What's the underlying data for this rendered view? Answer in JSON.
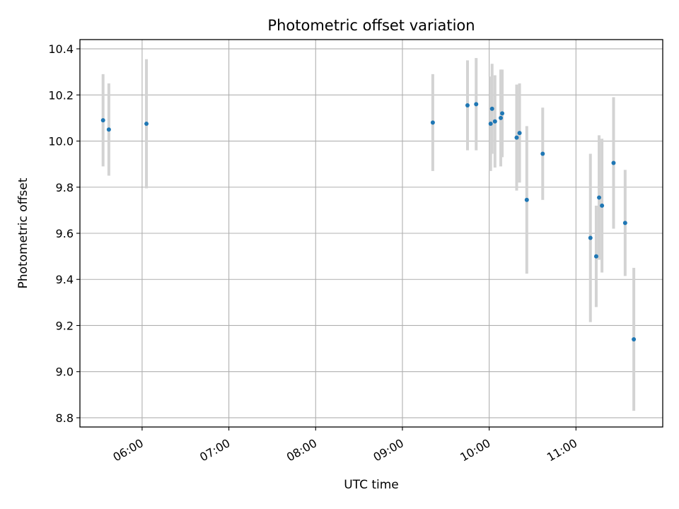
{
  "chart_data": {
    "type": "scatter",
    "title": "Photometric offset variation",
    "xlabel": "UTC time",
    "ylabel": "Photometric offset",
    "xlim": [
      "05:17",
      "12:00"
    ],
    "ylim": [
      8.76,
      10.44
    ],
    "x_ticks": [
      "06:00",
      "07:00",
      "08:00",
      "09:00",
      "10:00",
      "11:00"
    ],
    "y_ticks": [
      "8.8",
      "9.0",
      "9.2",
      "9.4",
      "9.6",
      "9.8",
      "10.0",
      "10.2",
      "10.4"
    ],
    "grid": true,
    "series": [
      {
        "marker_color": "#1f77b4",
        "errorbar_color": "#d3d3d3",
        "points": [
          {
            "x": "05:33",
            "y": 10.09,
            "yerr": 0.2
          },
          {
            "x": "05:37",
            "y": 10.05,
            "yerr": 0.2
          },
          {
            "x": "06:03",
            "y": 10.075,
            "yerr": 0.28
          },
          {
            "x": "09:21",
            "y": 10.08,
            "yerr": 0.21
          },
          {
            "x": "09:45",
            "y": 10.155,
            "yerr": 0.195
          },
          {
            "x": "09:51",
            "y": 10.16,
            "yerr": 0.2
          },
          {
            "x": "10:01",
            "y": 10.075,
            "yerr": 0.205
          },
          {
            "x": "10:02",
            "y": 10.14,
            "yerr": 0.195
          },
          {
            "x": "10:04",
            "y": 10.085,
            "yerr": 0.2
          },
          {
            "x": "10:08",
            "y": 10.1,
            "yerr": 0.21
          },
          {
            "x": "10:09",
            "y": 10.12,
            "yerr": 0.19
          },
          {
            "x": "10:19",
            "y": 10.015,
            "yerr": 0.23
          },
          {
            "x": "10:21",
            "y": 10.035,
            "yerr": 0.215
          },
          {
            "x": "10:26",
            "y": 9.745,
            "yerr": 0.32
          },
          {
            "x": "10:37",
            "y": 9.945,
            "yerr": 0.2
          },
          {
            "x": "11:10",
            "y": 9.58,
            "yerr": 0.365
          },
          {
            "x": "11:14",
            "y": 9.5,
            "yerr": 0.22
          },
          {
            "x": "11:16",
            "y": 9.755,
            "yerr": 0.27
          },
          {
            "x": "11:18",
            "y": 9.72,
            "yerr": 0.29
          },
          {
            "x": "11:26",
            "y": 9.905,
            "yerr": 0.285
          },
          {
            "x": "11:34",
            "y": 9.645,
            "yerr": 0.23
          },
          {
            "x": "11:40",
            "y": 9.14,
            "yerr": 0.31
          }
        ]
      }
    ]
  }
}
